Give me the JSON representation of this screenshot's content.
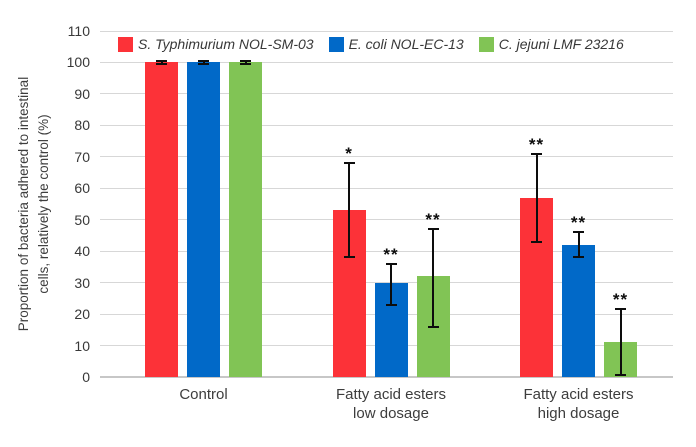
{
  "chart_data": {
    "type": "bar",
    "title": "",
    "ylabel_lines": [
      "Proportion of bacteria adhered to intestinal",
      "cells, relatively the control (%)"
    ],
    "ylabel_full": "Proportion of bacteria adhered to intestinal cells, relatively the control (%)",
    "xlabel": "",
    "categories": [
      {
        "lines": [
          "Control"
        ]
      },
      {
        "lines": [
          "Fatty acid esters",
          "low dosage"
        ]
      },
      {
        "lines": [
          "Fatty acid esters",
          "high dosage"
        ]
      }
    ],
    "series": [
      {
        "name": "S. Typhimurium NOL-SM-03",
        "color": "#fc3238",
        "values": [
          100,
          53,
          57
        ],
        "err_plus": [
          0.5,
          15,
          14
        ],
        "err_minus": [
          0.5,
          15,
          14
        ],
        "sig": [
          "",
          "*",
          "**"
        ]
      },
      {
        "name": "E. coli NOL-EC-13",
        "color": "#0169c8",
        "values": [
          100,
          30,
          42
        ],
        "err_plus": [
          0.5,
          6,
          4
        ],
        "err_minus": [
          0.5,
          7,
          4
        ],
        "sig": [
          "",
          "**",
          "**"
        ]
      },
      {
        "name": "C. jejuni LMF 23216",
        "color": "#81c455",
        "values": [
          100,
          32,
          11
        ],
        "err_plus": [
          0.5,
          15,
          10.5
        ],
        "err_minus": [
          0.5,
          16,
          10.5
        ],
        "sig": [
          "",
          "**",
          "**"
        ]
      }
    ],
    "y_axis": {
      "min": 0,
      "max": 110,
      "step": 10
    },
    "y_ticks": [
      0,
      10,
      20,
      30,
      40,
      50,
      60,
      70,
      80,
      90,
      100,
      110
    ],
    "grid": true,
    "legend_position": "top",
    "colors": {
      "grid": "#d7d7d7",
      "baseline": "#c7c7c7",
      "error_bars": "#0d0d0d",
      "axis_text": "#383838"
    }
  }
}
